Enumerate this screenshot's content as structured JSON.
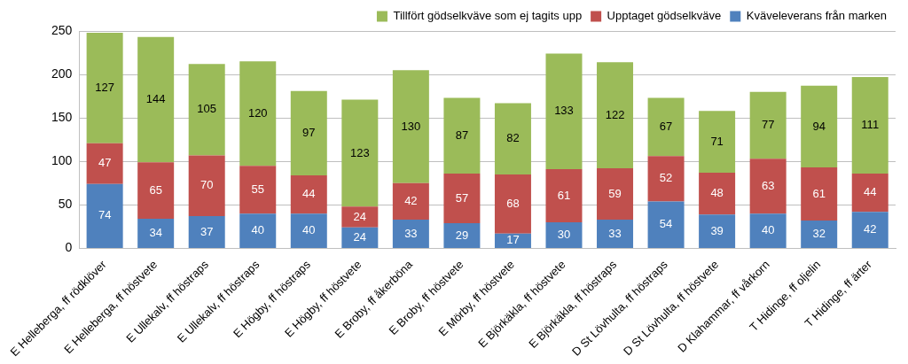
{
  "chart_data": {
    "type": "bar",
    "stacked": true,
    "data_labels": true,
    "grid": true,
    "legend": "upper right",
    "categories": [
      "E Helleberga, ff rödklöver",
      "E Helleberga, ff höstvete",
      "E Ullekalv, ff höstraps",
      "E Ullekalv, ff höstraps",
      "E Högby, ff höstraps",
      "E Högby, ff höstvete",
      "E Broby, ff åkerböna",
      "E Broby, ff höstvete",
      "E Mörby, ff höstvete",
      "E Björkäkla, ff höstvete",
      "E Björkäkla, ff höstraps",
      "D St Lövhulta, ff höstraps",
      "D St Lövhulta, ff höstvete",
      "D Klahammar, ff vårkorn",
      "T Hidinge, ff oljelin",
      "T Hidinge, ff ärter"
    ],
    "series": [
      {
        "name": "Kväveleverans från marken",
        "color": "#4f81bd",
        "values": [
          74,
          34,
          37,
          40,
          40,
          24,
          33,
          29,
          17,
          30,
          33,
          54,
          39,
          40,
          32,
          42
        ]
      },
      {
        "name": "Upptaget gödselkväve",
        "color": "#c0504d",
        "values": [
          47,
          65,
          70,
          55,
          44,
          24,
          42,
          57,
          68,
          61,
          59,
          52,
          48,
          63,
          61,
          44
        ]
      },
      {
        "name": "Tillfört gödselkväve som ej tagits upp",
        "color": "#9bbb59",
        "values": [
          127,
          144,
          105,
          120,
          97,
          123,
          130,
          87,
          82,
          133,
          122,
          67,
          71,
          77,
          94,
          111
        ]
      }
    ],
    "ylim": [
      0,
      250
    ],
    "yticks": [
      0,
      50,
      100,
      150,
      200,
      250
    ]
  }
}
